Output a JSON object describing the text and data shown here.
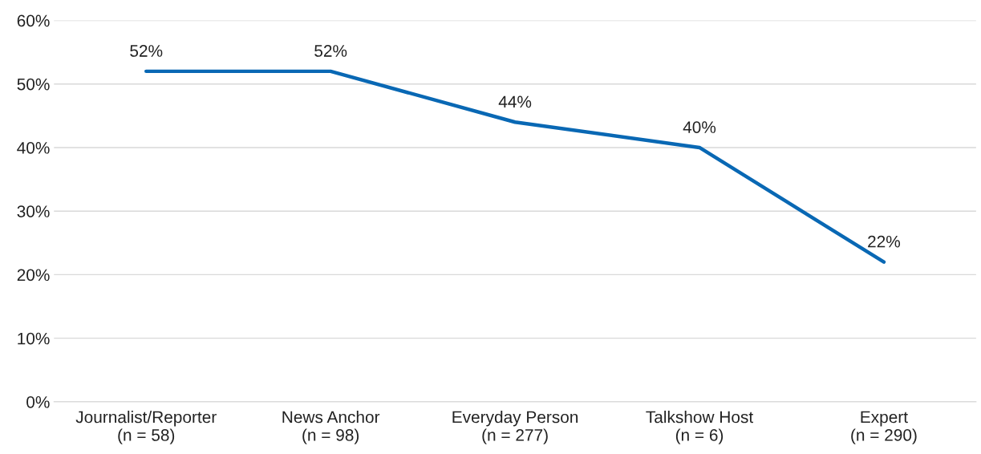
{
  "chart_data": {
    "type": "line",
    "categories": [
      "Journalist/Reporter\n(n = 58)",
      "News Anchor\n(n = 98)",
      "Everyday Person\n(n = 277)",
      "Talkshow Host\n(n = 6)",
      "Expert\n(n = 290)"
    ],
    "series": [
      {
        "color": "#0968b4",
        "values": [
          52,
          52,
          44,
          40,
          22
        ],
        "value_labels": [
          "52%",
          "52%",
          "44%",
          "40%",
          "22%"
        ]
      }
    ],
    "ylim": [
      0,
      60
    ],
    "yticks": [
      {
        "value": 0,
        "label": "0%"
      },
      {
        "value": 10,
        "label": "10%"
      },
      {
        "value": 20,
        "label": "20%"
      },
      {
        "value": 30,
        "label": "30%"
      },
      {
        "value": 40,
        "label": "40%"
      },
      {
        "value": 50,
        "label": "50%"
      },
      {
        "value": 60,
        "label": "60%"
      }
    ],
    "grid": "y",
    "marker": "none",
    "line_style": "solid"
  }
}
